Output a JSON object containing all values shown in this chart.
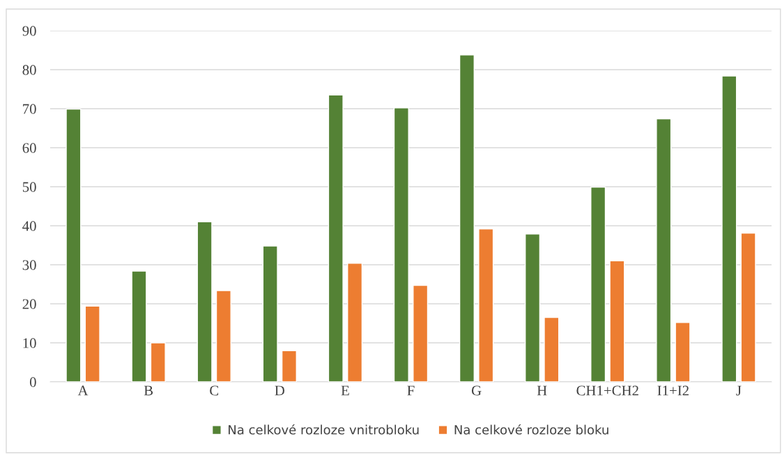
{
  "chart_data": {
    "type": "bar",
    "categories": [
      "A",
      "B",
      "C",
      "D",
      "E",
      "F",
      "G",
      "H",
      "CH1+CH2",
      "I1+I2",
      "J"
    ],
    "series": [
      {
        "name": "Na celkové rozloze vnitrobloku",
        "color": "#548235",
        "values": [
          69.9,
          28.4,
          41.0,
          34.8,
          73.5,
          70.2,
          83.8,
          37.9,
          49.9,
          67.4,
          78.4
        ]
      },
      {
        "name": "Na celkové rozloze bloku",
        "color": "#ed7d31",
        "values": [
          19.4,
          10.0,
          23.4,
          8.0,
          30.4,
          24.7,
          39.2,
          16.5,
          31.0,
          15.2,
          38.1
        ]
      }
    ],
    "ylim": [
      0,
      90
    ],
    "yticks": [
      0,
      10,
      20,
      30,
      40,
      50,
      60,
      70,
      80,
      90
    ],
    "grid": "y",
    "legend": "bottom"
  }
}
